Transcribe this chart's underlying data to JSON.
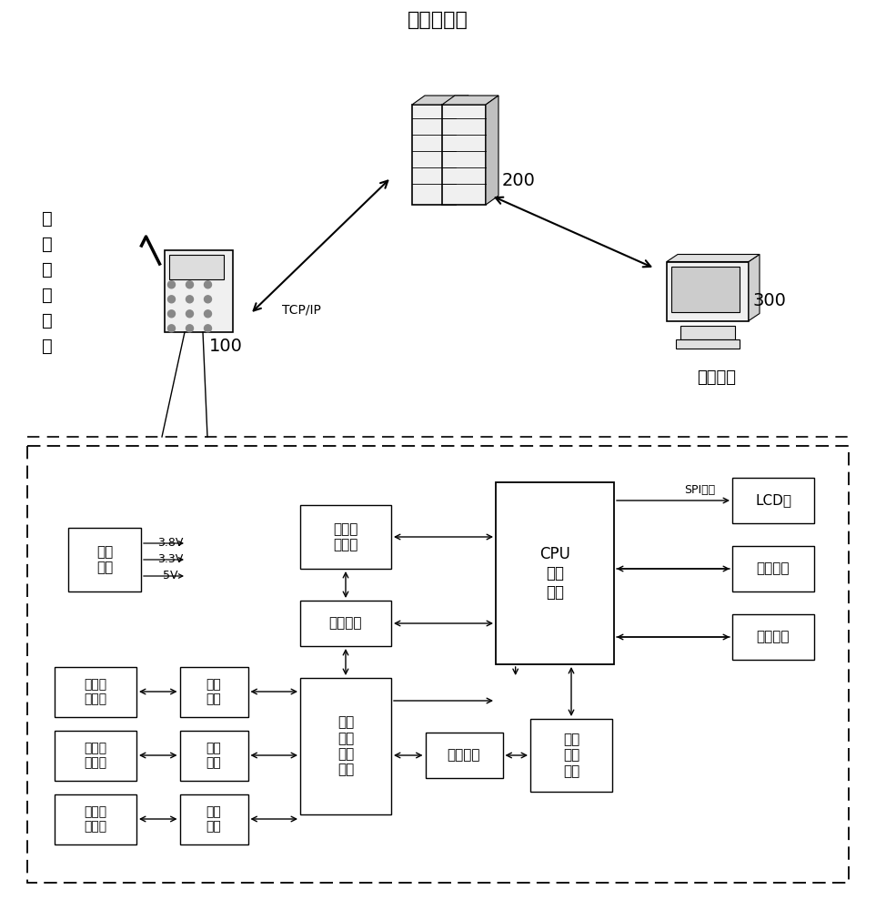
{
  "bg_color": "#ffffff",
  "top_label": "云端服务器",
  "left_label_lines": [
    "电",
    "话",
    "呼",
    "叫",
    "终",
    "端"
  ],
  "label_100": "100",
  "label_200": "200",
  "label_300": "300",
  "tcp_label": "TCP/IP",
  "mgr_label": "管理终端",
  "spi_label": "SPI总线",
  "power_label": "电源\n电路",
  "comm_label": "通讯模\n块电路",
  "filter_label": "滤波电路",
  "cpu_label": "CPU\n核心\n模块",
  "lcd_label": "LCD屏",
  "keyboard_label": "键盘电路",
  "network_label": "网络接口",
  "audio_label": "音频\n切换\n控制\n芯片",
  "filter2_label": "滤波\n电路",
  "soundcard_label": "声卡\n控制\n芯片",
  "handle_label": "手柄接\n口电路",
  "earphone_label": "耳机接\n口电路",
  "handsfree_label": "免提接\n口电路",
  "filt_small_label": "滤波\n电路",
  "power_voltages": [
    "3.8V",
    "3.3V",
    "5V"
  ],
  "font_name": "SimSun"
}
